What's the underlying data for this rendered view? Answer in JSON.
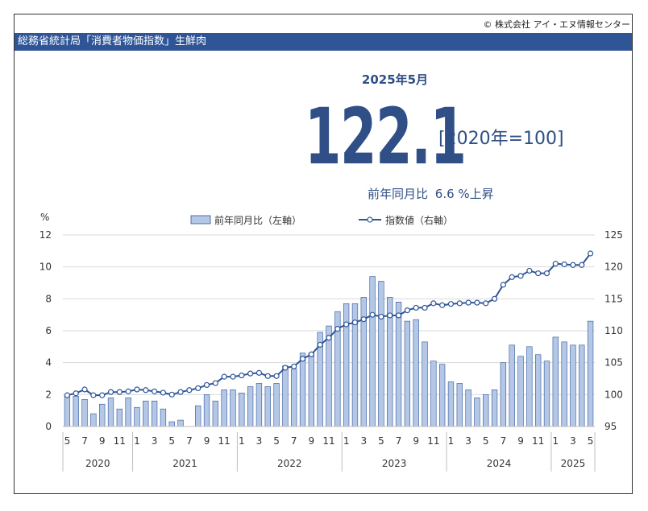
{
  "copyright": "© 株式会社 アイ・エヌ情報センター",
  "title": "総務省統計局「消費者物価指数」生鮮肉",
  "headline": {
    "period": "2025年5月",
    "value": "122.1",
    "base": "[2020年=100]",
    "yoy_label": "前年同月比",
    "yoy_value": "6.6 %上昇"
  },
  "colors": {
    "header": "#2f5597",
    "bar_fill": "#b4c7e7",
    "bar_stroke": "#2f5597",
    "line": "#2f5597"
  },
  "chart_data": {
    "type": "bar+line",
    "left_axis_unit": "%",
    "left_ylim": [
      0,
      12
    ],
    "left_ticks": [
      0,
      2,
      4,
      6,
      8,
      10,
      12
    ],
    "right_ylim": [
      95,
      125
    ],
    "right_ticks": [
      95,
      100,
      105,
      110,
      115,
      120,
      125
    ],
    "grid": true,
    "legend_position": "top",
    "month_ticks": [
      "5",
      "7",
      "9",
      "11",
      "1",
      "3",
      "5",
      "7",
      "9",
      "11",
      "1",
      "3",
      "5",
      "7",
      "9",
      "11",
      "1",
      "3",
      "5",
      "7",
      "9",
      "11",
      "1",
      "3",
      "5",
      "7",
      "9",
      "11",
      "1",
      "3",
      "5"
    ],
    "years": [
      {
        "label": "2020",
        "start": 0,
        "end": 8
      },
      {
        "label": "2021",
        "start": 8,
        "end": 20
      },
      {
        "label": "2022",
        "start": 20,
        "end": 32
      },
      {
        "label": "2023",
        "start": 32,
        "end": 44
      },
      {
        "label": "2024",
        "start": 44,
        "end": 56
      },
      {
        "label": "2025",
        "start": 56,
        "end": 61
      }
    ],
    "series": [
      {
        "name": "前年同月比（左軸）",
        "type": "bar",
        "axis": "left",
        "values": [
          1.9,
          1.9,
          1.7,
          0.8,
          1.4,
          1.8,
          1.1,
          1.8,
          1.2,
          1.6,
          1.6,
          1.1,
          0.3,
          0.4,
          0.0,
          1.3,
          2.0,
          1.6,
          2.3,
          2.3,
          2.1,
          2.5,
          2.7,
          2.5,
          2.7,
          3.8,
          3.6,
          4.6,
          4.6,
          5.9,
          6.3,
          7.2,
          7.7,
          7.7,
          8.1,
          9.4,
          9.1,
          8.1,
          7.8,
          6.6,
          6.7,
          5.3,
          4.1,
          3.9,
          2.8,
          2.7,
          2.3,
          1.8,
          2.0,
          2.3,
          4.0,
          5.1,
          4.4,
          5.0,
          4.5,
          4.1,
          5.6,
          5.3,
          5.1,
          5.1,
          6.6
        ]
      },
      {
        "name": "指数値（右軸）",
        "type": "line",
        "axis": "right",
        "values": [
          99.9,
          100.2,
          100.8,
          99.9,
          99.9,
          100.4,
          100.4,
          100.5,
          100.8,
          100.7,
          100.5,
          100.3,
          100.0,
          100.4,
          100.7,
          101.0,
          101.5,
          101.8,
          102.8,
          102.8,
          103.0,
          103.3,
          103.4,
          102.9,
          102.9,
          104.2,
          104.4,
          105.6,
          106.3,
          107.8,
          108.9,
          110.3,
          111.0,
          111.3,
          111.8,
          112.5,
          112.2,
          112.4,
          112.4,
          113.2,
          113.6,
          113.6,
          114.3,
          114.0,
          114.2,
          114.3,
          114.4,
          114.4,
          114.3,
          115.0,
          117.2,
          118.4,
          118.6,
          119.4,
          119.0,
          119.0,
          120.5,
          120.4,
          120.3,
          120.3,
          122.1
        ]
      }
    ]
  }
}
